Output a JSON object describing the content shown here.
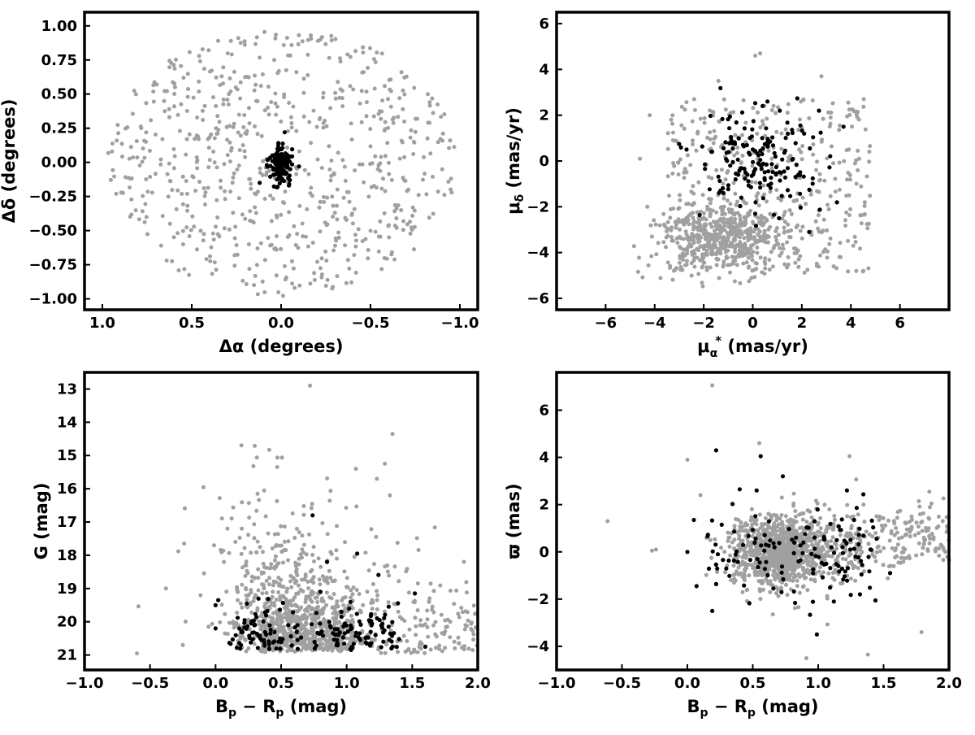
{
  "figure": {
    "panel_count": 4,
    "background": "#ffffff"
  },
  "colors": {
    "field_stars": "#a0a0a0",
    "members": "#000000",
    "axes": "#000000"
  },
  "chart_data": [
    {
      "id": "spatial",
      "type": "scatter",
      "title": "",
      "xlabel": "Δα (degrees)",
      "ylabel": "Δδ (degrees)",
      "xlim": [
        1.1,
        -1.1
      ],
      "ylim": [
        -1.08,
        1.1
      ],
      "xticks": [
        1.0,
        0.5,
        0.0,
        -0.5,
        -1.0
      ],
      "xtick_labels": [
        "1.0",
        "0.5",
        "0.0",
        "−0.5",
        "−1.0"
      ],
      "yticks": [
        1.0,
        0.75,
        0.5,
        0.25,
        0.0,
        -0.25,
        -0.5,
        -0.75,
        -1.0
      ],
      "ytick_labels": [
        "1.00",
        "0.75",
        "0.50",
        "0.25",
        "0.00",
        "−0.25",
        "−0.50",
        "−0.75",
        "−1.00"
      ],
      "grid": false,
      "series": [
        {
          "role": "field",
          "color": "#a0a0a0",
          "count": 700,
          "distribution": "uniform disk of radius 1 degree centred on (0,0)"
        },
        {
          "role": "members",
          "color": "#000000",
          "count": 120,
          "distribution": "tight clump within ~0.12 deg of (0,0), elongated in declination"
        }
      ],
      "points": {
        "members": [
          [
            0.0,
            0.0
          ],
          [
            0.02,
            0.1
          ],
          [
            -0.03,
            -0.08
          ],
          [
            0.05,
            0.05
          ],
          [
            -0.02,
            0.22
          ],
          [
            0.08,
            -0.02
          ],
          [
            0.12,
            -0.15
          ],
          [
            -0.1,
            -0.03
          ],
          [
            0.02,
            -0.18
          ]
        ]
      }
    },
    {
      "id": "proper_motion",
      "type": "scatter",
      "title": "",
      "xlabel": "μα* (mas/yr)",
      "xlabel_parts": {
        "main": "μ",
        "sub": "α",
        "sup": "*",
        "unit": "(mas/yr)"
      },
      "ylabel": "μδ (mas/yr)",
      "ylabel_parts": {
        "main": "μ",
        "sub": "δ",
        "unit": "(mas/yr)"
      },
      "xlim": [
        -8,
        8
      ],
      "ylim": [
        -6.5,
        6.5
      ],
      "xticks": [
        -6,
        -4,
        -2,
        0,
        2,
        4,
        6
      ],
      "xtick_labels": [
        "−6",
        "−4",
        "−2",
        "0",
        "2",
        "4",
        "6"
      ],
      "yticks": [
        -6,
        -4,
        -2,
        0,
        2,
        4,
        6
      ],
      "ytick_labels": [
        "−6",
        "−4",
        "−2",
        "0",
        "2",
        "4",
        "6"
      ],
      "grid": false,
      "series": [
        {
          "role": "field",
          "color": "#a0a0a0",
          "count": 900,
          "distribution": "broad cloud over x in [-4.5, 5], y in [-5, 4.7], densest near (-1.5, -3.5)"
        },
        {
          "role": "members",
          "color": "#000000",
          "count": 160,
          "distribution": "spread over x in [-2.5, 4], y in [-3, 2.6], concentrated near (0, 0)"
        }
      ],
      "points": {
        "field_outliers": [
          [
            0.1,
            4.6
          ],
          [
            0.3,
            4.7
          ],
          [
            -1.4,
            3.5
          ],
          [
            2.8,
            3.7
          ],
          [
            -4.2,
            2.0
          ],
          [
            -4.6,
            0.1
          ],
          [
            -4.3,
            -2.0
          ]
        ],
        "members": [
          [
            0.0,
            0.5
          ],
          [
            0.6,
            2.6
          ],
          [
            1.1,
            2.2
          ],
          [
            2.7,
            2.2
          ],
          [
            3.7,
            1.5
          ],
          [
            -2.7,
            0.5
          ],
          [
            -1.2,
            -1.4
          ],
          [
            0.1,
            -2.3
          ],
          [
            2.3,
            -3.1
          ],
          [
            0.4,
            2.4
          ]
        ]
      }
    },
    {
      "id": "cmd",
      "type": "scatter",
      "title": "",
      "xlabel": "Bp − Rp (mag)",
      "xlabel_parts": {
        "b": "B",
        "b_sub": "p",
        "minus": "−",
        "r": "R",
        "r_sub": "p",
        "unit": "(mag)"
      },
      "ylabel": "G (mag)",
      "xlim": [
        -1.0,
        2.0
      ],
      "ylim": [
        21.45,
        12.5
      ],
      "y_inverted": true,
      "xticks": [
        -1.0,
        -0.5,
        0.0,
        0.5,
        1.0,
        1.5,
        2.0
      ],
      "xtick_labels": [
        "−1.0",
        "−0.5",
        "0.0",
        "0.5",
        "1.0",
        "1.5",
        "2.0"
      ],
      "yticks": [
        13,
        14,
        15,
        16,
        17,
        18,
        19,
        20,
        21
      ],
      "ytick_labels": [
        "13",
        "14",
        "15",
        "16",
        "17",
        "18",
        "19",
        "20",
        "21"
      ],
      "grid": false,
      "series": [
        {
          "role": "field",
          "color": "#a0a0a0",
          "count": 1100,
          "distribution": "faint-star band at G 19-21 for colour 0.1-2.0, plus scattered brighter stars"
        },
        {
          "role": "members",
          "color": "#000000",
          "count": 170,
          "distribution": "mostly G 19.5-20.9, colour 0.0-1.6"
        }
      ],
      "points": {
        "field_outliers": [
          [
            -0.6,
            20.95
          ],
          [
            -0.25,
            20.7
          ],
          [
            -0.24,
            17.65
          ],
          [
            0.09,
            17.2
          ],
          [
            0.2,
            17.2
          ],
          [
            0.47,
            15.35
          ],
          [
            0.72,
            12.9
          ],
          [
            1.07,
            15.4
          ],
          [
            1.23,
            15.7
          ],
          [
            1.35,
            14.35
          ],
          [
            1.33,
            16.2
          ],
          [
            0.32,
            16.15
          ]
        ],
        "members": [
          [
            0.0,
            20.2
          ],
          [
            0.0,
            19.5
          ],
          [
            0.02,
            19.35
          ],
          [
            0.74,
            16.8
          ],
          [
            0.85,
            18.2
          ],
          [
            1.08,
            17.95
          ],
          [
            1.35,
            20.75
          ],
          [
            1.32,
            20.15
          ],
          [
            1.52,
            19.15
          ],
          [
            1.6,
            20.75
          ],
          [
            0.3,
            20.1
          ],
          [
            0.5,
            20.6
          ],
          [
            0.62,
            20.3
          ],
          [
            0.96,
            19.7
          ],
          [
            1.22,
            20.4
          ],
          [
            0.8,
            19.1
          ]
        ]
      }
    },
    {
      "id": "parallax",
      "type": "scatter",
      "title": "",
      "xlabel": "Bp − Rp (mag)",
      "xlabel_parts": {
        "b": "B",
        "b_sub": "p",
        "minus": "−",
        "r": "R",
        "r_sub": "p",
        "unit": "(mag)"
      },
      "ylabel": "ϖ (mas)",
      "xlim": [
        -1.0,
        2.0
      ],
      "ylim": [
        -5.0,
        7.6
      ],
      "xticks": [
        -1.0,
        -0.5,
        0.0,
        0.5,
        1.0,
        1.5,
        2.0
      ],
      "xtick_labels": [
        "−1.0",
        "−0.5",
        "0.0",
        "0.5",
        "1.0",
        "1.5",
        "2.0"
      ],
      "yticks": [
        -4,
        -2,
        0,
        2,
        4,
        6
      ],
      "ytick_labels": [
        "−4",
        "−2",
        "0",
        "2",
        "4",
        "6"
      ],
      "grid": false,
      "series": [
        {
          "role": "field",
          "color": "#a0a0a0",
          "count": 1200,
          "distribution": "band centred on parallax 0, widest near colour 0.7, extending to colour 2.0"
        },
        {
          "role": "members",
          "color": "#000000",
          "count": 130,
          "distribution": "parallax -3.5 to 4.3, colour 0.0-1.6, concentrated near 0"
        }
      ],
      "points": {
        "field_outliers": [
          [
            -0.61,
            1.3
          ],
          [
            -0.27,
            0.05
          ],
          [
            -0.24,
            0.1
          ],
          [
            0.0,
            3.9
          ],
          [
            0.19,
            7.05
          ],
          [
            0.1,
            2.4
          ],
          [
            0.91,
            -4.5
          ],
          [
            1.38,
            -4.35
          ],
          [
            1.79,
            -3.4
          ],
          [
            1.85,
            2.55
          ],
          [
            1.24,
            4.05
          ],
          [
            0.55,
            4.6
          ]
        ],
        "members": [
          [
            0.22,
            4.3
          ],
          [
            0.56,
            4.05
          ],
          [
            0.73,
            3.2
          ],
          [
            1.22,
            2.6
          ],
          [
            0.53,
            2.6
          ],
          [
            0.4,
            2.65
          ],
          [
            0.19,
            -2.5
          ],
          [
            0.99,
            -3.5
          ],
          [
            0.05,
            1.35
          ],
          [
            0.07,
            -1.45
          ],
          [
            1.55,
            -0.9
          ],
          [
            1.12,
            -2.1
          ],
          [
            0.0,
            0.0
          ],
          [
            0.6,
            0.3
          ],
          [
            0.85,
            -0.4
          ],
          [
            1.4,
            0.1
          ]
        ]
      }
    }
  ]
}
